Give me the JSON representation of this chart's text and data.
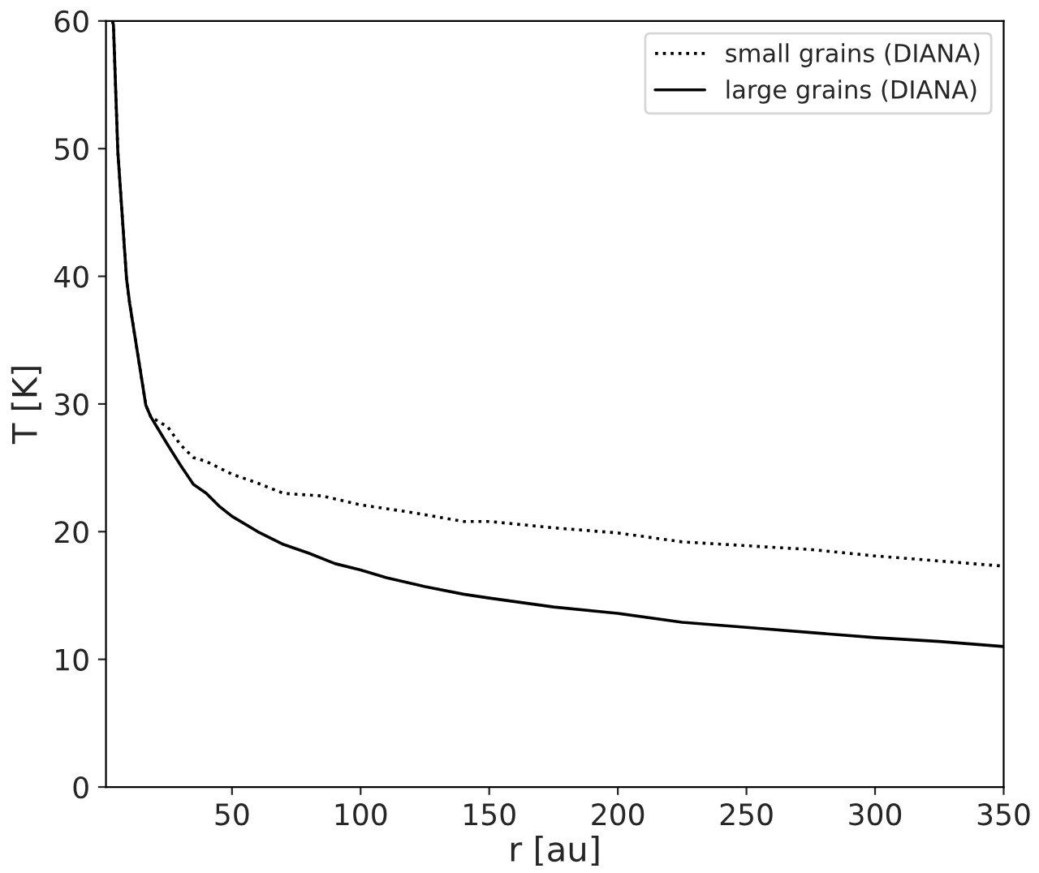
{
  "chart_data": {
    "type": "line",
    "xlabel": "r [au]",
    "ylabel": "T [K]",
    "xlim": [
      1,
      350
    ],
    "ylim": [
      0,
      60
    ],
    "xticks": [
      50,
      100,
      150,
      200,
      250,
      300,
      350
    ],
    "yticks": [
      0,
      10,
      20,
      30,
      40,
      50,
      60
    ],
    "grid": false,
    "legend": "top right",
    "marker": "none",
    "series": [
      {
        "name": "small grains (DIANA)",
        "color": "#000000",
        "line_style": "dotted",
        "x": [
          3.5,
          3.9,
          5.6,
          9,
          10.2,
          16.5,
          18.4,
          20,
          25,
          30,
          35,
          40,
          50,
          60,
          70,
          85,
          100,
          120,
          140,
          150,
          175,
          200,
          225,
          250,
          275,
          300,
          325,
          350
        ],
        "values": [
          60,
          59.7,
          49.8,
          39.8,
          37.9,
          29.9,
          29,
          28.8,
          28.2,
          26.8,
          25.8,
          25.5,
          24.5,
          23.8,
          23,
          22.8,
          22.1,
          21.5,
          20.8,
          20.8,
          20.3,
          19.9,
          19.2,
          18.9,
          18.6,
          18.1,
          17.7,
          17.3
        ]
      },
      {
        "name": "large grains (DIANA)",
        "color": "#000000",
        "line_style": "solid",
        "x": [
          3.5,
          3.9,
          5.6,
          9,
          10.2,
          16.5,
          18.4,
          20.8,
          25,
          30,
          35,
          40,
          45,
          50,
          60,
          70,
          80,
          90,
          100,
          110,
          125,
          140,
          150,
          175,
          200,
          225,
          250,
          275,
          300,
          325,
          350
        ],
        "values": [
          60,
          59.7,
          49.8,
          39.8,
          37.9,
          29.9,
          29,
          28.2,
          26.8,
          25.2,
          23.7,
          23,
          22,
          21.2,
          20,
          19,
          18.3,
          17.5,
          17,
          16.4,
          15.7,
          15.1,
          14.8,
          14.1,
          13.6,
          12.9,
          12.5,
          12.1,
          11.7,
          11.4,
          11.0
        ]
      }
    ]
  }
}
